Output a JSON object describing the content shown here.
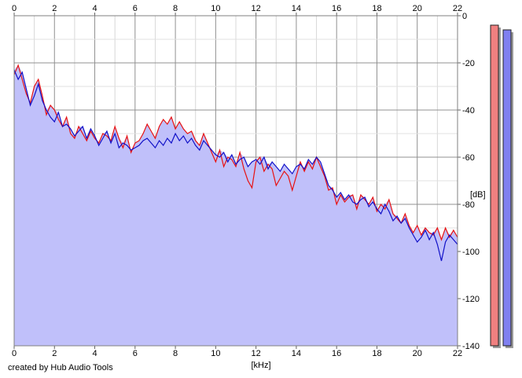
{
  "chart_data": {
    "type": "area",
    "title": "",
    "xlabel": "[kHz]",
    "ylabel": "[dB]",
    "xlim": [
      0,
      22
    ],
    "ylim": [
      -140,
      0
    ],
    "x_ticks": [
      0,
      2,
      4,
      6,
      8,
      10,
      12,
      14,
      16,
      18,
      20,
      22
    ],
    "y_ticks": [
      0,
      -20,
      -40,
      -60,
      -80,
      -100,
      -120,
      -140
    ],
    "x_tick_labels": [
      "0",
      "2",
      "4",
      "6",
      "8",
      "10",
      "12",
      "14",
      "16",
      "18",
      "20",
      "22"
    ],
    "y_tick_labels": [
      "0",
      "-20",
      "-40",
      "-60",
      "-80",
      "-100",
      "-120",
      "-140"
    ],
    "grid": true,
    "legend": "none",
    "series": [
      {
        "color": "#e81010",
        "x": [
          0,
          0.2,
          0.4,
          0.6,
          0.8,
          1.0,
          1.2,
          1.4,
          1.6,
          1.8,
          2.0,
          2.2,
          2.4,
          2.6,
          2.8,
          3.0,
          3.2,
          3.4,
          3.6,
          3.8,
          4.0,
          4.2,
          4.4,
          4.6,
          4.8,
          5.0,
          5.2,
          5.4,
          5.6,
          5.8,
          6.0,
          6.2,
          6.4,
          6.6,
          6.8,
          7.0,
          7.2,
          7.4,
          7.6,
          7.8,
          8.0,
          8.2,
          8.4,
          8.6,
          8.8,
          9.0,
          9.2,
          9.4,
          9.6,
          9.8,
          10.0,
          10.2,
          10.4,
          10.6,
          10.8,
          11.0,
          11.2,
          11.4,
          11.6,
          11.8,
          12.0,
          12.2,
          12.4,
          12.6,
          12.8,
          13.0,
          13.2,
          13.4,
          13.6,
          13.8,
          14.0,
          14.2,
          14.4,
          14.6,
          14.8,
          15.0,
          15.2,
          15.4,
          15.6,
          15.8,
          16.0,
          16.2,
          16.4,
          16.6,
          16.8,
          17.0,
          17.2,
          17.4,
          17.6,
          17.8,
          18.0,
          18.2,
          18.4,
          18.6,
          18.8,
          19.0,
          19.2,
          19.4,
          19.6,
          19.8,
          20.0,
          20.2,
          20.4,
          20.6,
          20.8,
          21.0,
          21.2,
          21.4,
          21.6,
          21.8,
          22.0
        ],
        "values": [
          -25,
          -21,
          -27,
          -33,
          -37,
          -30,
          -27,
          -34,
          -42,
          -38,
          -40,
          -44,
          -47,
          -43,
          -50,
          -52,
          -47,
          -50,
          -53,
          -49,
          -52,
          -54,
          -50,
          -51,
          -53,
          -47,
          -52,
          -56,
          -51,
          -58,
          -54,
          -53,
          -50,
          -46,
          -49,
          -52,
          -47,
          -44,
          -46,
          -43,
          -48,
          -45,
          -48,
          -50,
          -49,
          -53,
          -55,
          -50,
          -54,
          -58,
          -62,
          -57,
          -64,
          -60,
          -61,
          -64,
          -58,
          -65,
          -70,
          -73,
          -62,
          -60,
          -66,
          -63,
          -65,
          -72,
          -69,
          -66,
          -68,
          -74,
          -68,
          -62,
          -66,
          -62,
          -65,
          -60,
          -64,
          -68,
          -74,
          -73,
          -80,
          -76,
          -79,
          -77,
          -76,
          -82,
          -76,
          -78,
          -80,
          -77,
          -83,
          -80,
          -82,
          -78,
          -84,
          -86,
          -88,
          -84,
          -89,
          -92,
          -89,
          -93,
          -90,
          -92,
          -93,
          -90,
          -95,
          -90,
          -94,
          -91,
          -94
        ]
      },
      {
        "color": "#1010c8",
        "x": [
          0,
          0.2,
          0.4,
          0.6,
          0.8,
          1.0,
          1.2,
          1.4,
          1.6,
          1.8,
          2.0,
          2.2,
          2.4,
          2.6,
          2.8,
          3.0,
          3.2,
          3.4,
          3.6,
          3.8,
          4.0,
          4.2,
          4.4,
          4.6,
          4.8,
          5.0,
          5.2,
          5.4,
          5.6,
          5.8,
          6.0,
          6.2,
          6.4,
          6.6,
          6.8,
          7.0,
          7.2,
          7.4,
          7.6,
          7.8,
          8.0,
          8.2,
          8.4,
          8.6,
          8.8,
          9.0,
          9.2,
          9.4,
          9.6,
          9.8,
          10.0,
          10.2,
          10.4,
          10.6,
          10.8,
          11.0,
          11.2,
          11.4,
          11.6,
          11.8,
          12.0,
          12.2,
          12.4,
          12.6,
          12.8,
          13.0,
          13.2,
          13.4,
          13.6,
          13.8,
          14.0,
          14.2,
          14.4,
          14.6,
          14.8,
          15.0,
          15.2,
          15.4,
          15.6,
          15.8,
          16.0,
          16.2,
          16.4,
          16.6,
          16.8,
          17.0,
          17.2,
          17.4,
          17.6,
          17.8,
          18.0,
          18.2,
          18.4,
          18.6,
          18.8,
          19.0,
          19.2,
          19.4,
          19.6,
          19.8,
          20.0,
          20.2,
          20.4,
          20.6,
          20.8,
          21.0,
          21.2,
          21.4,
          21.6,
          21.8,
          22.0
        ],
        "values": [
          -23,
          -27,
          -24,
          -31,
          -38,
          -34,
          -29,
          -36,
          -40,
          -43,
          -45,
          -41,
          -47,
          -46,
          -48,
          -51,
          -49,
          -47,
          -52,
          -48,
          -51,
          -55,
          -52,
          -49,
          -54,
          -50,
          -56,
          -54,
          -55,
          -57,
          -56,
          -55,
          -53,
          -52,
          -54,
          -56,
          -53,
          -55,
          -52,
          -54,
          -50,
          -53,
          -51,
          -54,
          -52,
          -55,
          -57,
          -53,
          -55,
          -57,
          -59,
          -60,
          -58,
          -62,
          -59,
          -63,
          -61,
          -60,
          -64,
          -62,
          -61,
          -63,
          -60,
          -65,
          -62,
          -64,
          -66,
          -63,
          -65,
          -67,
          -64,
          -63,
          -65,
          -61,
          -63,
          -60,
          -62,
          -67,
          -72,
          -74,
          -77,
          -75,
          -78,
          -76,
          -79,
          -80,
          -78,
          -77,
          -81,
          -79,
          -82,
          -84,
          -80,
          -83,
          -87,
          -85,
          -88,
          -86,
          -90,
          -93,
          -96,
          -94,
          -91,
          -95,
          -92,
          -97,
          -104,
          -96,
          -93,
          -95,
          -97
        ]
      }
    ],
    "level_meter": {
      "min": -140,
      "max": 0,
      "channels": [
        {
          "color": "#f08080",
          "level": -4
        },
        {
          "color": "#8080f0",
          "level": -6
        }
      ]
    }
  },
  "credit": "created by Hub Audio Tools"
}
